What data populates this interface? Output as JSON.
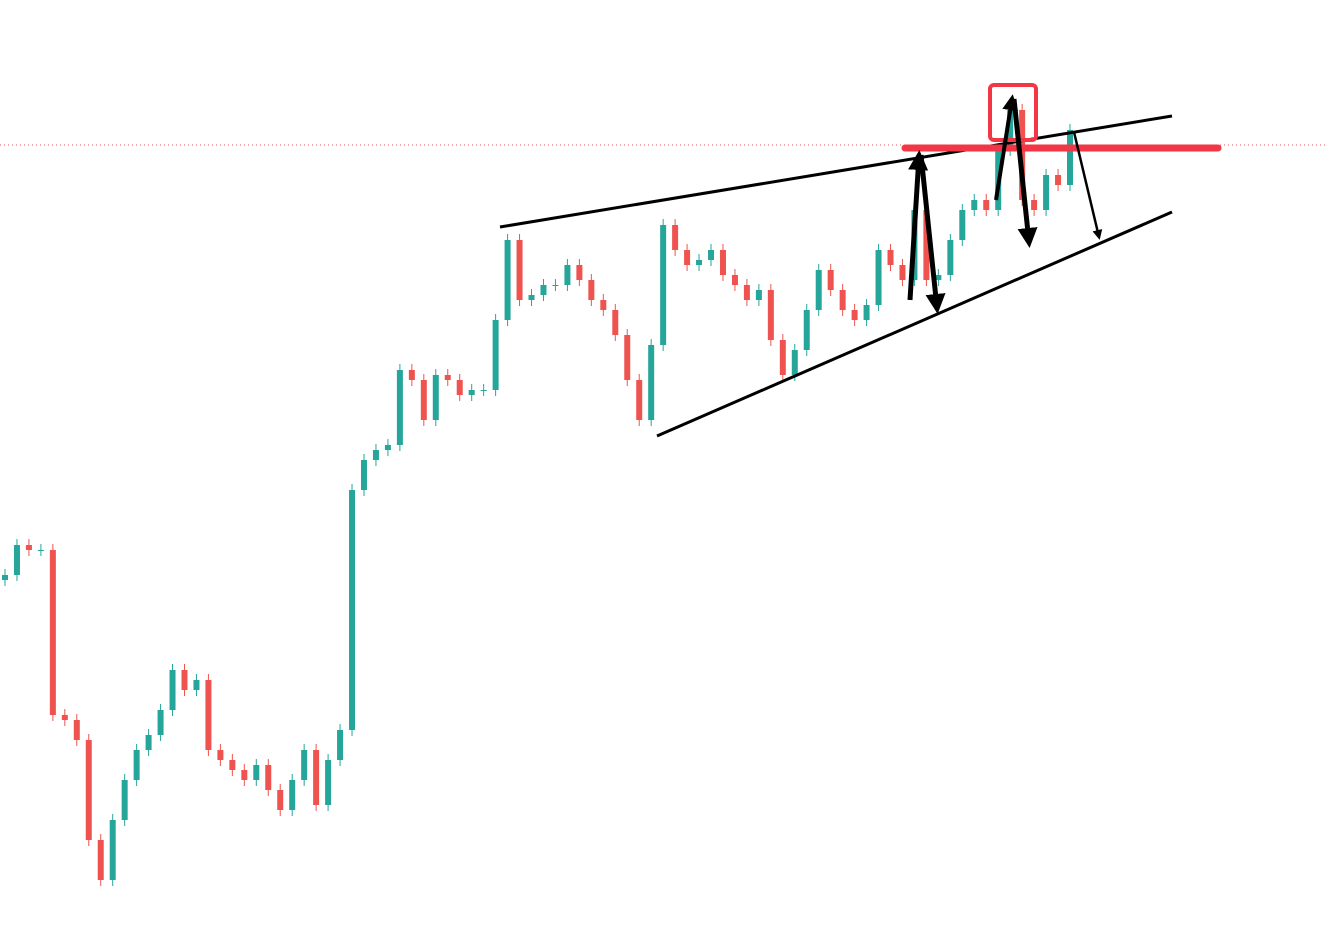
{
  "chart_data": {
    "type": "candlestick",
    "up_color": "#26a69a",
    "down_color": "#ef5350",
    "ylim": [
      0,
      935
    ],
    "open": [
      355,
      360,
      390,
      385,
      385,
      220,
      215,
      195,
      95,
      55,
      115,
      155,
      185,
      200,
      225,
      265,
      245,
      255,
      185,
      175,
      165,
      155,
      170,
      145,
      125,
      155,
      185,
      130,
      175,
      205,
      445,
      475,
      485,
      490,
      565,
      555,
      515,
      560,
      555,
      540,
      545,
      545,
      615,
      695,
      635,
      640,
      650,
      650,
      670,
      655,
      635,
      625,
      600,
      555,
      515,
      590,
      710,
      685,
      670,
      675,
      685,
      660,
      650,
      635,
      645,
      595,
      560,
      585,
      625,
      665,
      645,
      625,
      615,
      630,
      685,
      670,
      655,
      725,
      655,
      660,
      695,
      725,
      735,
      725,
      785,
      825,
      735,
      725,
      760,
      750
    ],
    "high": [
      366,
      396,
      396,
      391,
      391,
      226,
      221,
      201,
      101,
      121,
      161,
      191,
      206,
      231,
      271,
      271,
      261,
      261,
      191,
      181,
      171,
      176,
      176,
      151,
      161,
      191,
      191,
      181,
      211,
      451,
      481,
      491,
      496,
      571,
      571,
      561,
      566,
      566,
      561,
      551,
      551,
      621,
      701,
      701,
      646,
      656,
      656,
      676,
      676,
      661,
      641,
      631,
      606,
      561,
      596,
      716,
      716,
      691,
      681,
      691,
      691,
      666,
      656,
      651,
      651,
      601,
      591,
      631,
      671,
      671,
      651,
      631,
      636,
      691,
      691,
      676,
      731,
      731,
      666,
      701,
      731,
      741,
      741,
      791,
      831,
      831,
      741,
      766,
      766,
      811
    ],
    "low": [
      349,
      354,
      379,
      379,
      214,
      209,
      189,
      89,
      49,
      49,
      109,
      149,
      179,
      194,
      219,
      239,
      239,
      179,
      169,
      159,
      149,
      149,
      139,
      119,
      119,
      149,
      124,
      124,
      169,
      199,
      439,
      469,
      479,
      484,
      549,
      509,
      509,
      549,
      534,
      534,
      539,
      539,
      609,
      629,
      629,
      634,
      644,
      644,
      649,
      629,
      619,
      594,
      549,
      509,
      509,
      584,
      679,
      664,
      664,
      669,
      654,
      644,
      629,
      629,
      589,
      554,
      554,
      579,
      619,
      639,
      619,
      609,
      609,
      624,
      664,
      649,
      649,
      649,
      649,
      654,
      689,
      719,
      719,
      719,
      779,
      729,
      719,
      719,
      744,
      744
    ],
    "close": [
      360,
      390,
      385,
      385,
      220,
      215,
      195,
      95,
      55,
      115,
      155,
      185,
      200,
      225,
      265,
      245,
      255,
      185,
      175,
      165,
      155,
      170,
      145,
      125,
      155,
      185,
      130,
      175,
      205,
      445,
      475,
      485,
      490,
      565,
      555,
      515,
      560,
      555,
      540,
      545,
      545,
      615,
      695,
      635,
      640,
      650,
      650,
      670,
      655,
      635,
      625,
      600,
      555,
      515,
      590,
      710,
      685,
      670,
      675,
      685,
      660,
      650,
      635,
      645,
      595,
      560,
      585,
      625,
      665,
      645,
      625,
      615,
      630,
      685,
      670,
      655,
      725,
      655,
      660,
      695,
      725,
      735,
      725,
      785,
      825,
      735,
      725,
      760,
      750,
      805
    ]
  }
}
